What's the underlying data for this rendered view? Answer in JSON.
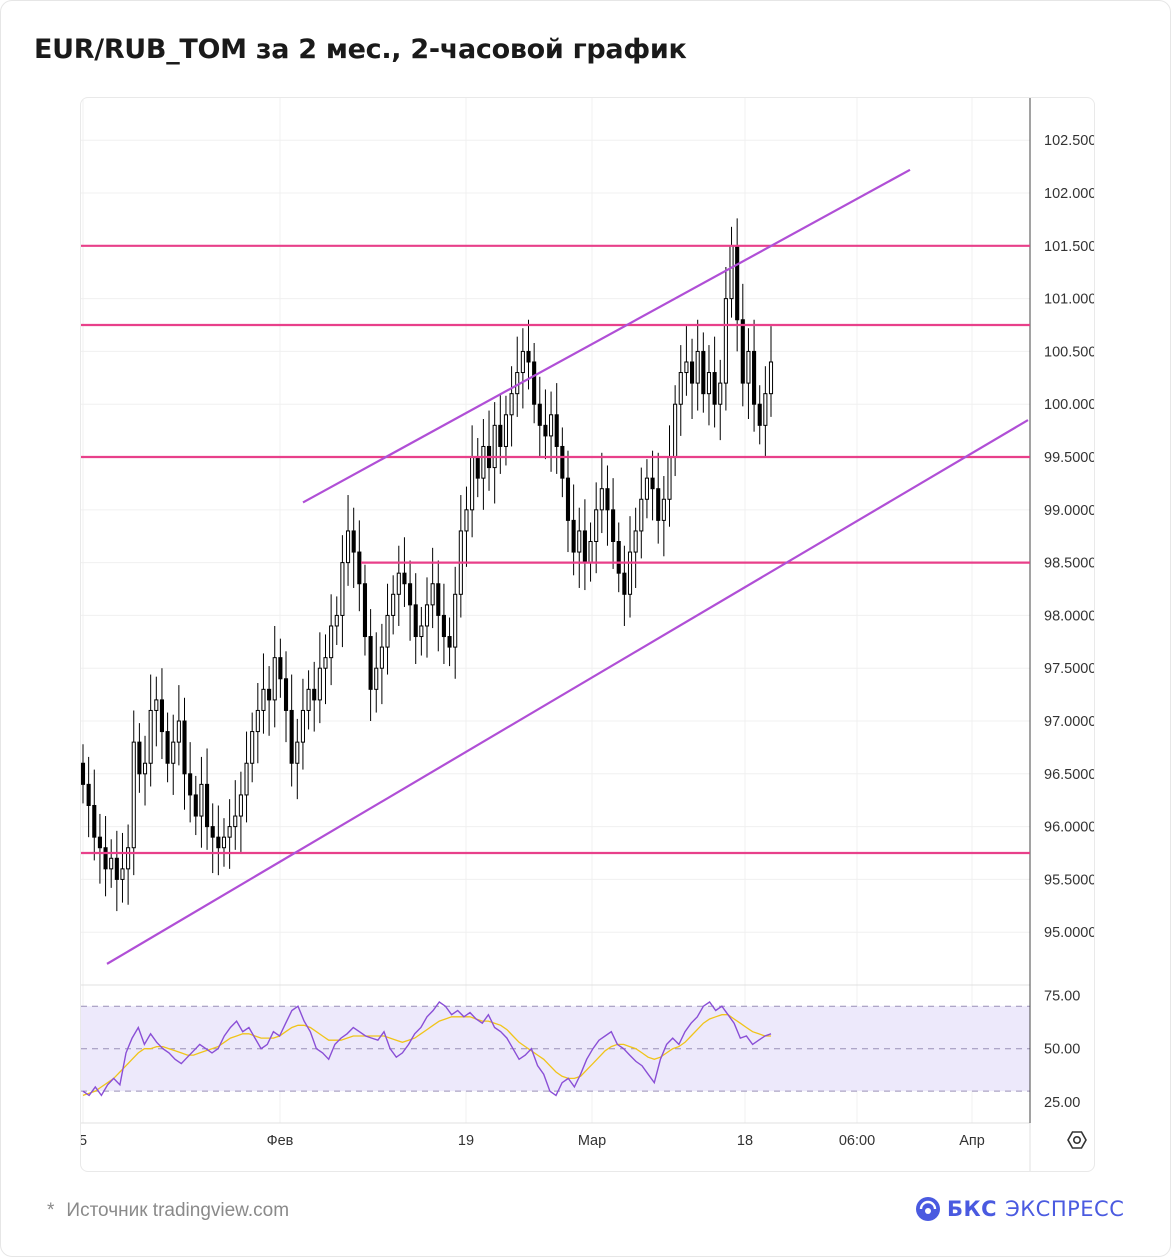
{
  "title": "EUR/RUB_TOM за 2 мес., 2-часовой график",
  "source": {
    "star": "*",
    "text": "Источник tradingview.com"
  },
  "brand": {
    "bold": "БКС",
    "light": "ЭКСПРЕСС",
    "color": "#4a5ae0"
  },
  "colors": {
    "candle": "#000000",
    "level": "#e8408a",
    "channel": "#b04fd6",
    "rsi": "#8a4fd6",
    "rsi_ma": "#f0c419",
    "rsi_band": "#ede9fb",
    "grid": "#f0f0f0",
    "axis_text": "#333333"
  },
  "icons": {
    "settings": "gear-icon"
  },
  "chart_data": [
    {
      "type": "candlestick",
      "title": "EUR/RUB_TOM за 2 мес., 2-часовой график",
      "y_ticks": [
        "95.0000",
        "95.5000",
        "96.0000",
        "96.5000",
        "97.0000",
        "97.5000",
        "98.0000",
        "98.5000",
        "99.0000",
        "99.5000",
        "100.0000",
        "100.5000",
        "101.0000",
        "101.5000",
        "102.0000",
        "102.5000"
      ],
      "ylim": [
        94.5,
        102.9
      ],
      "x_ticks": [
        "5",
        "Фев",
        "19",
        "Мар",
        "18",
        "06:00",
        "Апр"
      ],
      "horizontal_levels": [
        101.5,
        100.75,
        99.5,
        98.5,
        95.75
      ],
      "channel_lines": [
        {
          "name": "upper",
          "points": [
            [
              0,
              99.07
            ],
            [
              0.612,
              102.22
            ]
          ]
        },
        {
          "name": "lower",
          "points": [
            [
              0,
              94.7
            ],
            [
              0.66,
              99.85
            ]
          ]
        }
      ],
      "series": [
        {
          "name": "EUR/RUB_TOM 2H",
          "values": [
            96.4,
            96.2,
            95.9,
            95.8,
            95.6,
            95.7,
            95.5,
            95.6,
            95.8,
            96.8,
            96.5,
            96.6,
            97.1,
            97.2,
            96.9,
            96.6,
            96.8,
            97.0,
            96.5,
            96.3,
            96.1,
            96.4,
            96.0,
            95.9,
            95.8,
            95.9,
            96.0,
            96.1,
            96.3,
            96.6,
            96.9,
            97.1,
            97.3,
            97.2,
            97.6,
            97.4,
            97.1,
            96.6,
            96.8,
            97.1,
            97.3,
            97.2,
            97.5,
            97.6,
            97.9,
            98.0,
            98.5,
            98.8,
            98.6,
            98.3,
            97.8,
            97.3,
            97.5,
            97.7,
            98.0,
            98.2,
            98.4,
            98.3,
            98.1,
            97.8,
            97.9,
            98.1,
            98.3,
            98.0,
            97.8,
            97.7,
            98.2,
            98.8,
            99.0,
            99.5,
            99.3,
            99.6,
            99.4,
            99.8,
            99.6,
            99.9,
            100.1,
            100.3,
            100.5,
            100.4,
            100.0,
            99.8,
            99.7,
            99.9,
            99.6,
            99.3,
            98.9,
            98.6,
            98.8,
            98.5,
            98.7,
            99.0,
            99.2,
            99.0,
            98.7,
            98.4,
            98.2,
            98.6,
            98.8,
            99.1,
            99.3,
            99.2,
            98.9,
            99.1,
            99.5,
            100.0,
            100.3,
            100.4,
            100.2,
            100.5,
            100.1,
            100.3,
            100.0,
            100.2,
            101.0,
            101.5,
            100.8,
            100.2,
            100.5,
            100.0,
            99.8,
            100.1,
            100.4
          ]
        }
      ]
    },
    {
      "type": "line",
      "title": "RSI",
      "y_ticks": [
        "25.00",
        "50.00",
        "75.00"
      ],
      "ylim": [
        15,
        80
      ],
      "band": [
        30,
        70
      ],
      "series": [
        {
          "name": "RSI",
          "values": [
            30,
            28,
            32,
            28,
            33,
            36,
            33,
            48,
            55,
            60,
            52,
            57,
            53,
            50,
            48,
            45,
            43,
            46,
            49,
            52,
            50,
            48,
            50,
            56,
            60,
            63,
            58,
            60,
            55,
            50,
            52,
            58,
            56,
            62,
            68,
            70,
            63,
            58,
            50,
            48,
            45,
            52,
            55,
            57,
            60,
            58,
            56,
            55,
            54,
            58,
            50,
            46,
            48,
            52,
            57,
            60,
            65,
            68,
            72,
            70,
            66,
            68,
            65,
            67,
            64,
            62,
            66,
            60,
            58,
            55,
            50,
            45,
            47,
            50,
            42,
            38,
            30,
            28,
            34,
            36,
            32,
            38,
            45,
            50,
            54,
            56,
            58,
            52,
            50,
            47,
            44,
            42,
            38,
            34,
            45,
            52,
            55,
            52,
            58,
            62,
            65,
            70,
            72,
            68,
            70,
            66,
            62,
            55,
            56,
            52,
            54,
            56,
            57
          ]
        },
        {
          "name": "RSI MA",
          "values": [
            28,
            29,
            30,
            32,
            34,
            36,
            39,
            42,
            45,
            48,
            50,
            50,
            51,
            51,
            50,
            49,
            48,
            47,
            47,
            48,
            49,
            50,
            51,
            53,
            55,
            56,
            57,
            57,
            56,
            55,
            55,
            55,
            56,
            58,
            60,
            61,
            61,
            60,
            58,
            56,
            54,
            54,
            54,
            55,
            56,
            56,
            56,
            56,
            56,
            56,
            55,
            54,
            53,
            54,
            55,
            57,
            59,
            61,
            63,
            64,
            65,
            65,
            65,
            65,
            64,
            63,
            63,
            62,
            61,
            59,
            56,
            53,
            51,
            49,
            47,
            45,
            42,
            39,
            37,
            36,
            36,
            37,
            40,
            43,
            46,
            49,
            51,
            52,
            52,
            51,
            50,
            48,
            46,
            45,
            46,
            48,
            50,
            51,
            53,
            56,
            59,
            62,
            64,
            65,
            66,
            66,
            64,
            62,
            60,
            58,
            57,
            56,
            56
          ]
        }
      ]
    }
  ]
}
